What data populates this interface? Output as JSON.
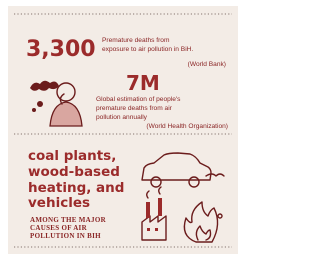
{
  "stat_1": {
    "number": "3,300",
    "description_lines": [
      "Premature deaths from",
      "exposure to air pollution in BiH."
    ],
    "source": "(World Bank)"
  },
  "stat_2": {
    "number": "7M",
    "description_lines": [
      "Global estimation of people's",
      "premature deaths from air",
      "pollution annually"
    ],
    "source": "(World Health Organization)"
  },
  "causes": {
    "heading_lines": [
      "coal plants,",
      "wood-based",
      "heating, and",
      "vehicles"
    ],
    "caption_lines": [
      "AMONG THE MAJOR",
      "CAUSES OF AIR",
      "POLLUTION IN BIH"
    ]
  }
}
